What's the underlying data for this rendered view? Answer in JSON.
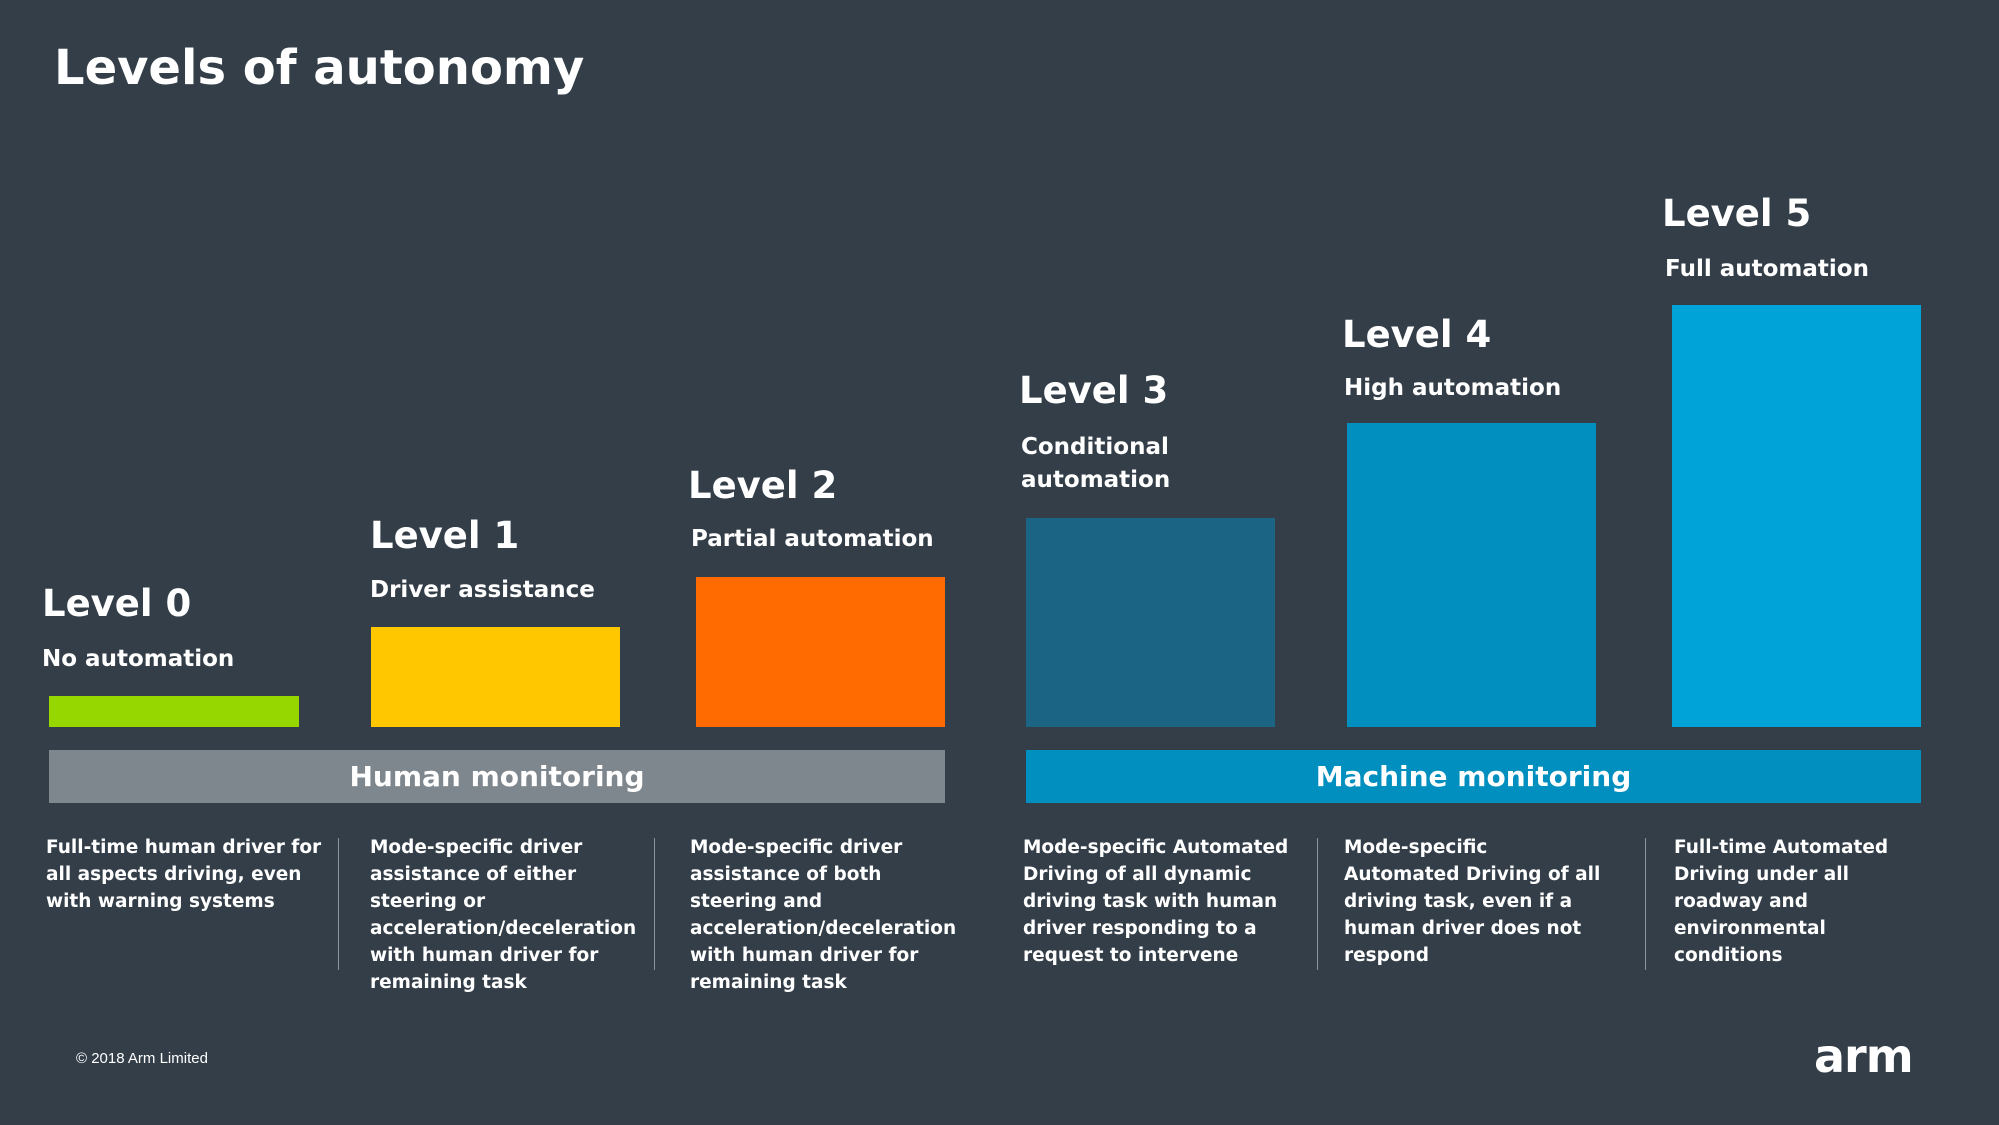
{
  "title": "Levels of autonomy",
  "levels": [
    {
      "title": "Level 0",
      "subtitle": "No automation",
      "color": "#97d700",
      "description": "Full-time human driver for all aspects driving, even with warning systems"
    },
    {
      "title": "Level 1",
      "subtitle": "Driver assistance",
      "color": "#ffc700",
      "description": "Mode-specific driver assistance of either steering or acceleration/deceleration with human driver for remaining task"
    },
    {
      "title": "Level 2",
      "subtitle": "Partial automation",
      "color": "#ff6b00",
      "description": "Mode-specific driver assistance of both steering and acceleration/deceleration with human driver for remaining task"
    },
    {
      "title": "Level 3",
      "subtitle": "Conditional automation",
      "color": "#1b6483",
      "description": "Mode-specific Automated Driving of all dynamic driving task with human driver responding to a request to intervene"
    },
    {
      "title": "Level 4",
      "subtitle": "High automation",
      "color": "#008fbe",
      "description": "Mode-specific Automated Driving of all driving task, even if a human driver does not respond"
    },
    {
      "title": "Level 5",
      "subtitle": "Full automation",
      "color": "#00a3d8",
      "description": "Full-time Automated Driving under all roadway and environmental conditions"
    }
  ],
  "bands": {
    "human": {
      "label": "Human monitoring",
      "color": "#7f878e"
    },
    "machine": {
      "label": "Machine monitoring",
      "color": "#008fbe"
    }
  },
  "footer": {
    "copyright": "© 2018 Arm Limited",
    "logo_text": "arm"
  }
}
